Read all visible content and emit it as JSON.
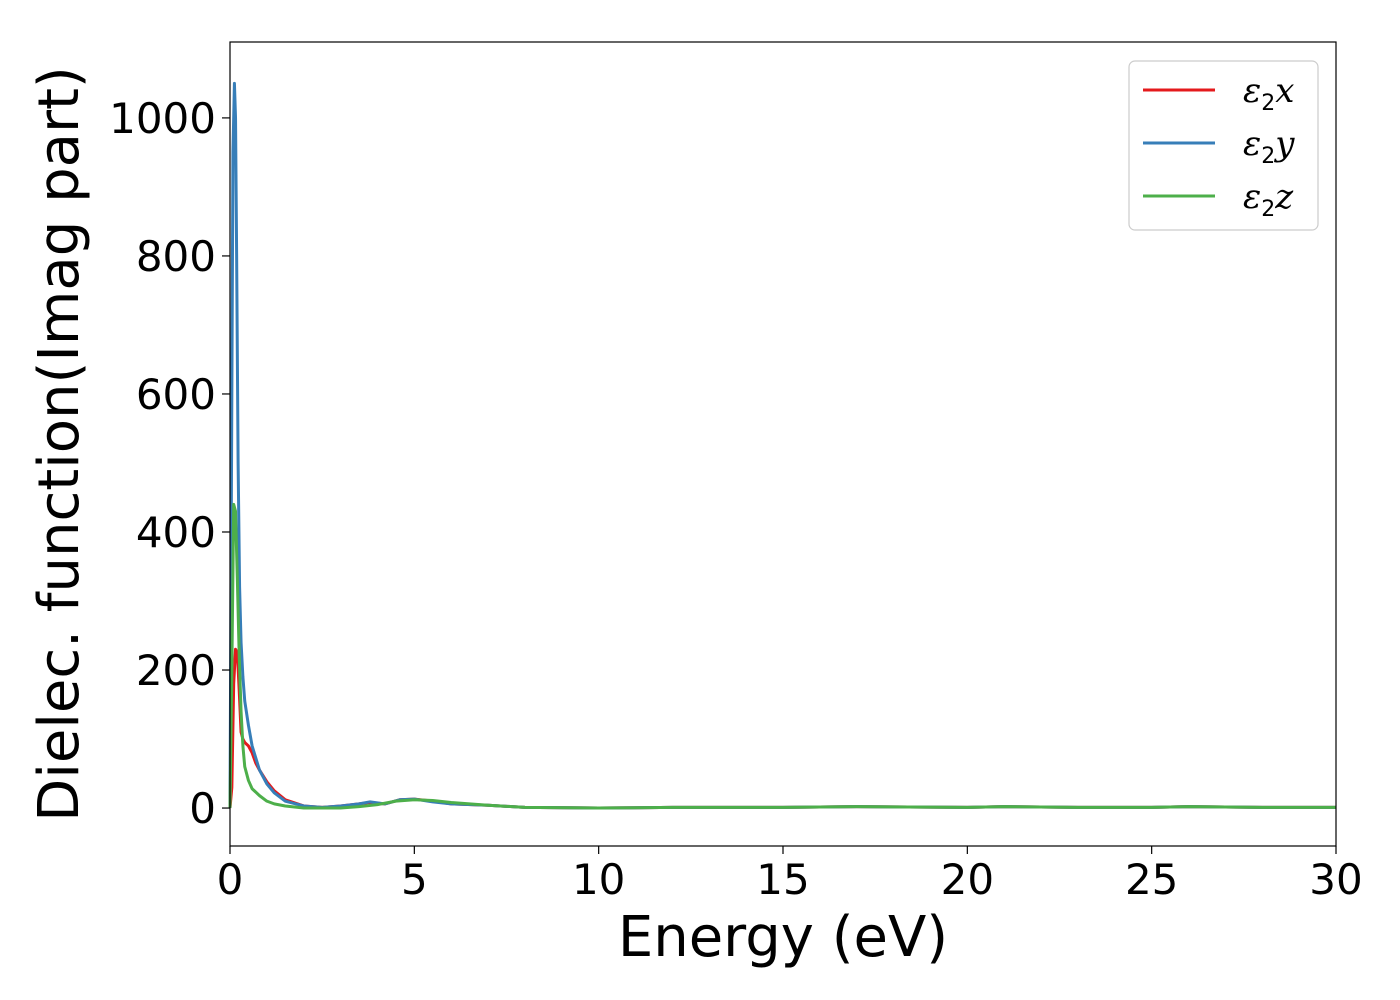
{
  "chart_data": {
    "type": "line",
    "title": "",
    "xlabel": "Energy (eV)",
    "ylabel": "Dielec. function(Imag part)",
    "xlim": [
      0,
      30
    ],
    "ylim": [
      -55,
      1110
    ],
    "xticks": [
      0,
      5,
      10,
      15,
      20,
      25,
      30
    ],
    "yticks": [
      0,
      200,
      400,
      600,
      800,
      1000
    ],
    "grid": false,
    "legend_position": "top-right",
    "series": [
      {
        "name": "ε2x",
        "legend_base": "ε",
        "legend_sub": "2",
        "legend_var": "x",
        "color": "#e41a1c",
        "x": [
          0,
          0.05,
          0.1,
          0.15,
          0.2,
          0.25,
          0.3,
          0.35,
          0.4,
          0.5,
          0.6,
          0.7,
          0.8,
          1.0,
          1.2,
          1.5,
          2.0,
          2.5,
          3.0,
          3.5,
          3.8,
          4.2,
          4.6,
          5.0,
          5.5,
          6.0,
          7.0,
          8.0,
          10,
          12,
          15,
          17,
          20,
          21,
          23,
          25,
          26,
          28,
          30
        ],
        "y": [
          0,
          30,
          180,
          230,
          225,
          170,
          110,
          100,
          95,
          90,
          80,
          65,
          55,
          38,
          25,
          12,
          3,
          1,
          3,
          6,
          8,
          6,
          12,
          13,
          10,
          6,
          4,
          1,
          0,
          1,
          1,
          2,
          1,
          2,
          1,
          1,
          2,
          1,
          1
        ]
      },
      {
        "name": "ε2y",
        "legend_base": "ε",
        "legend_sub": "2",
        "legend_var": "y",
        "color": "#377eb8",
        "x": [
          0,
          0.05,
          0.08,
          0.12,
          0.15,
          0.18,
          0.22,
          0.26,
          0.3,
          0.35,
          0.4,
          0.5,
          0.6,
          0.8,
          1.0,
          1.2,
          1.5,
          2.0,
          2.5,
          3.0,
          3.5,
          3.8,
          4.2,
          4.6,
          5.0,
          5.5,
          6.0,
          7.0,
          8.0,
          10,
          12,
          15,
          17,
          20,
          21,
          23,
          25,
          26,
          28,
          30
        ],
        "y": [
          0,
          600,
          950,
          1050,
          1000,
          800,
          500,
          320,
          240,
          190,
          155,
          120,
          90,
          55,
          35,
          22,
          10,
          3,
          1,
          3,
          6,
          9,
          6,
          12,
          13,
          9,
          6,
          4,
          1,
          0,
          1,
          1,
          2,
          1,
          2,
          1,
          1,
          2,
          1,
          1
        ]
      },
      {
        "name": "ε2z",
        "legend_base": "ε",
        "legend_sub": "2",
        "legend_var": "z",
        "color": "#4daf4a",
        "x": [
          0,
          0.05,
          0.1,
          0.15,
          0.2,
          0.25,
          0.3,
          0.35,
          0.4,
          0.5,
          0.6,
          0.8,
          1.0,
          1.2,
          1.5,
          2.0,
          2.5,
          3.0,
          3.5,
          4.0,
          4.5,
          5.0,
          5.5,
          6.0,
          7.0,
          8.0,
          10,
          12,
          15,
          17,
          20,
          21,
          23,
          25,
          26,
          28,
          30
        ],
        "y": [
          0,
          200,
          440,
          430,
          330,
          220,
          140,
          90,
          60,
          40,
          28,
          18,
          10,
          6,
          3,
          0,
          0,
          0,
          2,
          5,
          10,
          12,
          11,
          8,
          4,
          1,
          0,
          1,
          1,
          2,
          1,
          2,
          1,
          1,
          2,
          1,
          1
        ]
      }
    ]
  }
}
